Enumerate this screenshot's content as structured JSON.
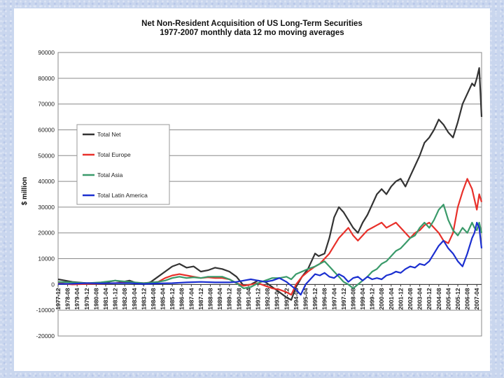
{
  "chart_data": {
    "type": "line",
    "title": "Net Non-Resident Acquisition of US Long-Term Securities",
    "subtitle": "1977-2007 monthly data 12 mo moving averages",
    "ylabel": "$ million",
    "xlabel": "",
    "ylim": [
      -20000,
      90000
    ],
    "yticks": [
      "90000",
      "80000",
      "70000",
      "60000",
      "50000",
      "40000",
      "30000",
      "20000",
      "10000",
      "0",
      "-10000",
      "-20000"
    ],
    "grid": true,
    "legend_position": "upper-left",
    "xticks": [
      "1977-12",
      "1978-08",
      "1979-04",
      "1979-12",
      "1980-08",
      "1981-04",
      "1981-12",
      "1982-08",
      "1983-04",
      "1983-12",
      "1984-08",
      "1985-04",
      "1985-12",
      "1986-08",
      "1987-04",
      "1987-12",
      "1988-08",
      "1989-04",
      "1989-12",
      "1990-08",
      "1991-04",
      "1991-12",
      "1992-08",
      "1993-04",
      "1993-12",
      "1994-08",
      "1995-04",
      "1995-12",
      "1996-08",
      "1997-04",
      "1997-12",
      "1998-08",
      "1999-04",
      "1999-12",
      "2000-08",
      "2001-04",
      "2001-12",
      "2002-08",
      "2003-04",
      "2003-12",
      "2004-08",
      "2005-04",
      "2005-12",
      "2006-08",
      "2007-04"
    ],
    "x_start": "1977-12",
    "x_end": "2007-08",
    "series": [
      {
        "name": "Total Net",
        "color": "#333333",
        "points": [
          [
            "1977-12",
            2000
          ],
          [
            "1978-12",
            1000
          ],
          [
            "1979-12",
            500
          ],
          [
            "1980-12",
            500
          ],
          [
            "1981-12",
            1500
          ],
          [
            "1982-06",
            1000
          ],
          [
            "1982-12",
            1500
          ],
          [
            "1983-06",
            500
          ],
          [
            "1983-12",
            0
          ],
          [
            "1984-06",
            1000
          ],
          [
            "1984-12",
            3000
          ],
          [
            "1985-06",
            5000
          ],
          [
            "1985-12",
            7000
          ],
          [
            "1986-06",
            8000
          ],
          [
            "1986-12",
            6500
          ],
          [
            "1987-06",
            7000
          ],
          [
            "1987-12",
            5000
          ],
          [
            "1988-06",
            5500
          ],
          [
            "1988-12",
            6500
          ],
          [
            "1989-06",
            6000
          ],
          [
            "1989-12",
            5000
          ],
          [
            "1990-06",
            3000
          ],
          [
            "1990-12",
            -500
          ],
          [
            "1991-06",
            0
          ],
          [
            "1991-12",
            1500
          ],
          [
            "1992-06",
            1000
          ],
          [
            "1992-12",
            -1000
          ],
          [
            "1993-06",
            -3000
          ],
          [
            "1993-12",
            -5000
          ],
          [
            "1994-04",
            -6000
          ],
          [
            "1994-08",
            -1000
          ],
          [
            "1995-01",
            3000
          ],
          [
            "1995-06",
            6000
          ],
          [
            "1995-12",
            12000
          ],
          [
            "1996-03",
            11000
          ],
          [
            "1996-08",
            12000
          ],
          [
            "1996-12",
            18000
          ],
          [
            "1997-04",
            26000
          ],
          [
            "1997-08",
            30000
          ],
          [
            "1997-12",
            28000
          ],
          [
            "1998-04",
            25000
          ],
          [
            "1998-08",
            22000
          ],
          [
            "1998-12",
            20000
          ],
          [
            "1999-04",
            24000
          ],
          [
            "1999-08",
            27000
          ],
          [
            "1999-12",
            31000
          ],
          [
            "2000-04",
            35000
          ],
          [
            "2000-08",
            37000
          ],
          [
            "2000-12",
            35000
          ],
          [
            "2001-04",
            38000
          ],
          [
            "2001-08",
            40000
          ],
          [
            "2001-12",
            41000
          ],
          [
            "2002-04",
            38000
          ],
          [
            "2002-08",
            42000
          ],
          [
            "2002-12",
            46000
          ],
          [
            "2003-04",
            50000
          ],
          [
            "2003-08",
            55000
          ],
          [
            "2003-12",
            57000
          ],
          [
            "2004-04",
            60000
          ],
          [
            "2004-08",
            64000
          ],
          [
            "2004-12",
            62000
          ],
          [
            "2005-04",
            59000
          ],
          [
            "2005-08",
            57000
          ],
          [
            "2005-12",
            63000
          ],
          [
            "2006-04",
            70000
          ],
          [
            "2006-08",
            74000
          ],
          [
            "2006-12",
            78000
          ],
          [
            "2007-02",
            77000
          ],
          [
            "2007-04",
            80000
          ],
          [
            "2007-06",
            84000
          ],
          [
            "2007-08",
            65000
          ]
        ]
      },
      {
        "name": "Total Europe",
        "color": "#e8302a",
        "points": [
          [
            "1977-12",
            500
          ],
          [
            "1978-12",
            0
          ],
          [
            "1979-12",
            200
          ],
          [
            "1980-12",
            300
          ],
          [
            "1981-12",
            500
          ],
          [
            "1982-12",
            800
          ],
          [
            "1983-12",
            500
          ],
          [
            "1984-12",
            1000
          ],
          [
            "1985-06",
            2500
          ],
          [
            "1985-12",
            3500
          ],
          [
            "1986-06",
            4000
          ],
          [
            "1986-12",
            3500
          ],
          [
            "1987-06",
            3000
          ],
          [
            "1987-12",
            2500
          ],
          [
            "1988-06",
            2800
          ],
          [
            "1988-12",
            2500
          ],
          [
            "1989-06",
            2500
          ],
          [
            "1989-12",
            2000
          ],
          [
            "1990-06",
            500
          ],
          [
            "1990-12",
            -500
          ],
          [
            "1991-06",
            0
          ],
          [
            "1991-12",
            500
          ],
          [
            "1992-06",
            -500
          ],
          [
            "1992-12",
            -1500
          ],
          [
            "1993-06",
            -2000
          ],
          [
            "1993-12",
            -3000
          ],
          [
            "1994-04",
            -4000
          ],
          [
            "1994-08",
            0
          ],
          [
            "1995-01",
            3000
          ],
          [
            "1995-06",
            5000
          ],
          [
            "1995-12",
            7000
          ],
          [
            "1996-04",
            8000
          ],
          [
            "1996-08",
            10000
          ],
          [
            "1996-12",
            12000
          ],
          [
            "1997-04",
            15000
          ],
          [
            "1997-08",
            18000
          ],
          [
            "1997-12",
            20000
          ],
          [
            "1998-04",
            22000
          ],
          [
            "1998-08",
            19000
          ],
          [
            "1998-12",
            17000
          ],
          [
            "1999-04",
            19000
          ],
          [
            "1999-08",
            21000
          ],
          [
            "1999-12",
            22000
          ],
          [
            "2000-04",
            23000
          ],
          [
            "2000-08",
            24000
          ],
          [
            "2000-12",
            22000
          ],
          [
            "2001-04",
            23000
          ],
          [
            "2001-08",
            24000
          ],
          [
            "2001-12",
            22000
          ],
          [
            "2002-04",
            20000
          ],
          [
            "2002-08",
            18000
          ],
          [
            "2002-12",
            20000
          ],
          [
            "2003-04",
            21000
          ],
          [
            "2003-08",
            23000
          ],
          [
            "2003-12",
            24000
          ],
          [
            "2004-04",
            22000
          ],
          [
            "2004-08",
            20000
          ],
          [
            "2004-12",
            17000
          ],
          [
            "2005-04",
            16000
          ],
          [
            "2005-08",
            20000
          ],
          [
            "2005-12",
            30000
          ],
          [
            "2006-04",
            36000
          ],
          [
            "2006-08",
            41000
          ],
          [
            "2006-12",
            37000
          ],
          [
            "2007-02",
            33000
          ],
          [
            "2007-04",
            29000
          ],
          [
            "2007-06",
            35000
          ],
          [
            "2007-08",
            32000
          ]
        ]
      },
      {
        "name": "Total Asia",
        "color": "#3a9a6a",
        "points": [
          [
            "1977-12",
            1000
          ],
          [
            "1978-12",
            800
          ],
          [
            "1979-12",
            500
          ],
          [
            "1980-12",
            800
          ],
          [
            "1981-12",
            1500
          ],
          [
            "1982-12",
            1000
          ],
          [
            "1983-12",
            500
          ],
          [
            "1984-12",
            1000
          ],
          [
            "1985-06",
            1500
          ],
          [
            "1985-12",
            2500
          ],
          [
            "1986-06",
            3000
          ],
          [
            "1986-12",
            2500
          ],
          [
            "1987-06",
            2800
          ],
          [
            "1987-12",
            2500
          ],
          [
            "1988-06",
            3000
          ],
          [
            "1988-12",
            3000
          ],
          [
            "1989-06",
            3000
          ],
          [
            "1989-12",
            2000
          ],
          [
            "1990-06",
            500
          ],
          [
            "1990-12",
            -1500
          ],
          [
            "1991-06",
            -1000
          ],
          [
            "1991-12",
            500
          ],
          [
            "1992-06",
            1500
          ],
          [
            "1992-12",
            2500
          ],
          [
            "1993-06",
            2500
          ],
          [
            "1993-12",
            3000
          ],
          [
            "1994-04",
            2000
          ],
          [
            "1994-08",
            4000
          ],
          [
            "1995-01",
            5000
          ],
          [
            "1995-06",
            6000
          ],
          [
            "1995-12",
            7000
          ],
          [
            "1996-04",
            8000
          ],
          [
            "1996-08",
            9000
          ],
          [
            "1996-12",
            7000
          ],
          [
            "1997-04",
            5000
          ],
          [
            "1997-08",
            3000
          ],
          [
            "1997-12",
            1000
          ],
          [
            "1998-04",
            0
          ],
          [
            "1998-08",
            -1500
          ],
          [
            "1998-12",
            0
          ],
          [
            "1999-04",
            1500
          ],
          [
            "1999-08",
            3000
          ],
          [
            "1999-12",
            5000
          ],
          [
            "2000-04",
            6000
          ],
          [
            "2000-08",
            8000
          ],
          [
            "2000-12",
            9000
          ],
          [
            "2001-04",
            11000
          ],
          [
            "2001-08",
            13000
          ],
          [
            "2001-12",
            14000
          ],
          [
            "2002-04",
            16000
          ],
          [
            "2002-08",
            18000
          ],
          [
            "2002-12",
            19000
          ],
          [
            "2003-04",
            22000
          ],
          [
            "2003-08",
            24000
          ],
          [
            "2003-12",
            22000
          ],
          [
            "2004-04",
            25000
          ],
          [
            "2004-08",
            29000
          ],
          [
            "2004-12",
            31000
          ],
          [
            "2005-04",
            25000
          ],
          [
            "2005-08",
            21000
          ],
          [
            "2005-12",
            19000
          ],
          [
            "2006-04",
            22000
          ],
          [
            "2006-08",
            20000
          ],
          [
            "2006-12",
            24000
          ],
          [
            "2007-02",
            22000
          ],
          [
            "2007-04",
            21000
          ],
          [
            "2007-06",
            24000
          ],
          [
            "2007-08",
            20000
          ]
        ]
      },
      {
        "name": "Total Latin America",
        "color": "#1b2fd0",
        "points": [
          [
            "1977-12",
            200
          ],
          [
            "1978-12",
            300
          ],
          [
            "1979-12",
            500
          ],
          [
            "1980-12",
            400
          ],
          [
            "1981-12",
            500
          ],
          [
            "1982-12",
            500
          ],
          [
            "1983-12",
            200
          ],
          [
            "1984-12",
            400
          ],
          [
            "1985-12",
            500
          ],
          [
            "1986-12",
            800
          ],
          [
            "1987-12",
            1000
          ],
          [
            "1988-12",
            800
          ],
          [
            "1989-12",
            800
          ],
          [
            "1990-06",
            1000
          ],
          [
            "1990-12",
            1500
          ],
          [
            "1991-06",
            2000
          ],
          [
            "1991-12",
            1500
          ],
          [
            "1992-06",
            1000
          ],
          [
            "1992-12",
            1500
          ],
          [
            "1993-06",
            2500
          ],
          [
            "1993-12",
            1000
          ],
          [
            "1994-04",
            -500
          ],
          [
            "1994-08",
            -2000
          ],
          [
            "1994-12",
            -4000
          ],
          [
            "1995-04",
            0
          ],
          [
            "1995-08",
            2000
          ],
          [
            "1995-12",
            4000
          ],
          [
            "1996-04",
            3500
          ],
          [
            "1996-08",
            4500
          ],
          [
            "1996-12",
            3000
          ],
          [
            "1997-04",
            2500
          ],
          [
            "1997-08",
            4000
          ],
          [
            "1997-12",
            3000
          ],
          [
            "1998-04",
            1000
          ],
          [
            "1998-08",
            2500
          ],
          [
            "1998-12",
            3000
          ],
          [
            "1999-04",
            1500
          ],
          [
            "1999-08",
            3000
          ],
          [
            "1999-12",
            2000
          ],
          [
            "2000-04",
            2500
          ],
          [
            "2000-08",
            2000
          ],
          [
            "2000-12",
            3500
          ],
          [
            "2001-04",
            4000
          ],
          [
            "2001-08",
            5000
          ],
          [
            "2001-12",
            4500
          ],
          [
            "2002-04",
            6000
          ],
          [
            "2002-08",
            7000
          ],
          [
            "2002-12",
            6500
          ],
          [
            "2003-04",
            8000
          ],
          [
            "2003-08",
            7500
          ],
          [
            "2003-12",
            9000
          ],
          [
            "2004-04",
            12000
          ],
          [
            "2004-08",
            15000
          ],
          [
            "2004-12",
            17000
          ],
          [
            "2005-04",
            14000
          ],
          [
            "2005-08",
            12000
          ],
          [
            "2005-12",
            9000
          ],
          [
            "2006-04",
            7000
          ],
          [
            "2006-08",
            12000
          ],
          [
            "2006-12",
            18000
          ],
          [
            "2007-02",
            20000
          ],
          [
            "2007-04",
            24000
          ],
          [
            "2007-06",
            22000
          ],
          [
            "2007-08",
            14000
          ]
        ]
      }
    ]
  }
}
